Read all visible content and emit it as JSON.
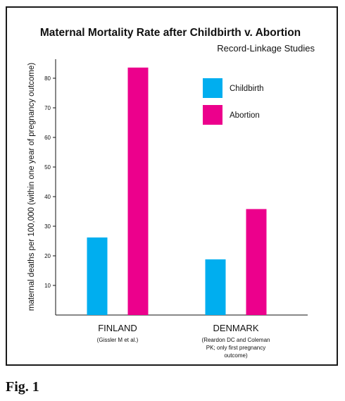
{
  "figure_label": "Fig. 1",
  "chart_data": {
    "type": "bar",
    "title": "Maternal Mortality Rate after Childbirth v. Abortion",
    "subtitle": "Record-Linkage Studies",
    "ylabel": "maternal deaths per 100,000 (within one year of pregnancy outcome)",
    "xlabel": "",
    "ylim": [
      0,
      85
    ],
    "yticks": [
      10,
      20,
      30,
      40,
      50,
      60,
      70,
      80
    ],
    "grid": false,
    "legend_position": "top-right",
    "categories": [
      {
        "name": "FINLAND",
        "note": [
          "(Gissler M et al.)"
        ]
      },
      {
        "name": "DENMARK",
        "note": [
          "(Reardon DC and Coleman",
          "PK; only first pregnancy",
          "outcome)"
        ]
      }
    ],
    "series": [
      {
        "name": "Childbirth",
        "color": "#00aeef",
        "values": [
          26.2,
          18.8
        ]
      },
      {
        "name": "Abortion",
        "color": "#ec008c",
        "values": [
          83.6,
          35.8
        ]
      }
    ]
  }
}
